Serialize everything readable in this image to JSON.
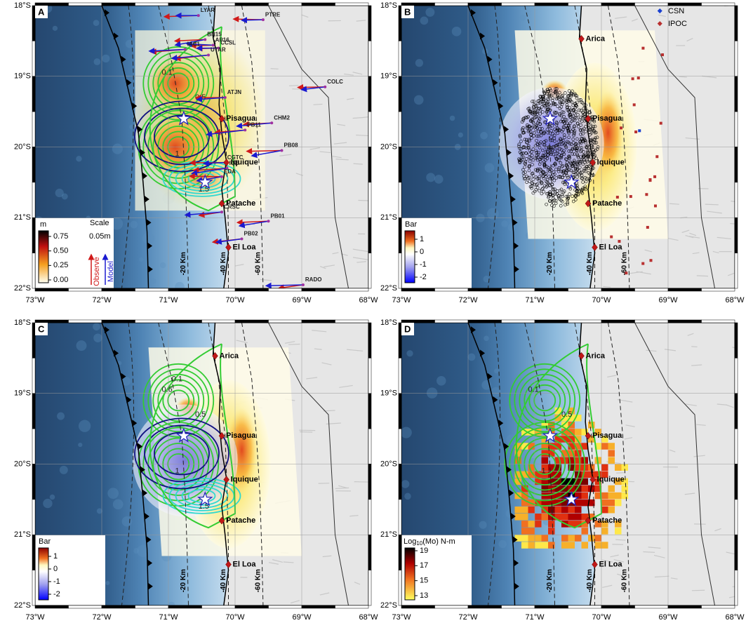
{
  "axes": {
    "lat_labels": [
      "18°S",
      "19°S",
      "20°S",
      "21°S",
      "22°S"
    ],
    "lon_labels": [
      "73°W",
      "72°W",
      "71°W",
      "70°W",
      "69°W",
      "68°W"
    ]
  },
  "depth_labels": [
    "-20 Km",
    "-40 Km",
    "-60 Km"
  ],
  "panels": [
    {
      "letter": "A",
      "stations": [
        "LYAR",
        "PTRE",
        "BN15",
        "AP16",
        "CCSL",
        "IAC1",
        "UTAR",
        "ATJN",
        "CHM2",
        "PB11",
        "PB08",
        "CGTC",
        "IQE",
        "EDA",
        "CRSC",
        "PB01",
        "PB02",
        "COLC",
        "RADO"
      ],
      "cities": [
        "Pisagua",
        "Iquique",
        "Patache",
        "El Loa"
      ],
      "contour_labels": [
        "0.1",
        "0.5",
        "1",
        "1.5"
      ],
      "legend": {
        "unit": "m",
        "scale_title": "Scale",
        "scale_value": "0.05m",
        "observe": "Observe",
        "model": "Model",
        "ticks": [
          0.75,
          {
            "value": 0.5,
            "label": "0.50"
          },
          0.25,
          {
            "value": 0,
            "label": "0.00"
          }
        ]
      }
    },
    {
      "letter": "B",
      "cities": [
        "Arica",
        "Pisagua",
        "Iquique",
        "Patache",
        "El Loa"
      ],
      "networks": [
        "CSN",
        "IPOC"
      ],
      "legend": {
        "title": "Bar",
        "ticks": [
          1,
          0,
          -1,
          -2
        ]
      }
    },
    {
      "letter": "C",
      "cities": [
        "Arica",
        "Pisagua",
        "Iquique",
        "Patache",
        "El Loa"
      ],
      "contour_labels": [
        "0.6",
        "0.5",
        "1",
        "1.5",
        "0.1"
      ],
      "legend": {
        "title": "Bar",
        "ticks": [
          1,
          0,
          -1,
          -2
        ]
      }
    },
    {
      "letter": "D",
      "cities": [
        "Arica",
        "Pisagua",
        "Iquique",
        "Patache",
        "El Loa"
      ],
      "contour_labels": [
        "0.1",
        "0.5",
        "1"
      ],
      "legend": {
        "title_parts": [
          "Log",
          "10",
          "(Mo) N-m"
        ],
        "ticks": [
          19,
          17,
          15,
          13
        ]
      }
    }
  ]
}
